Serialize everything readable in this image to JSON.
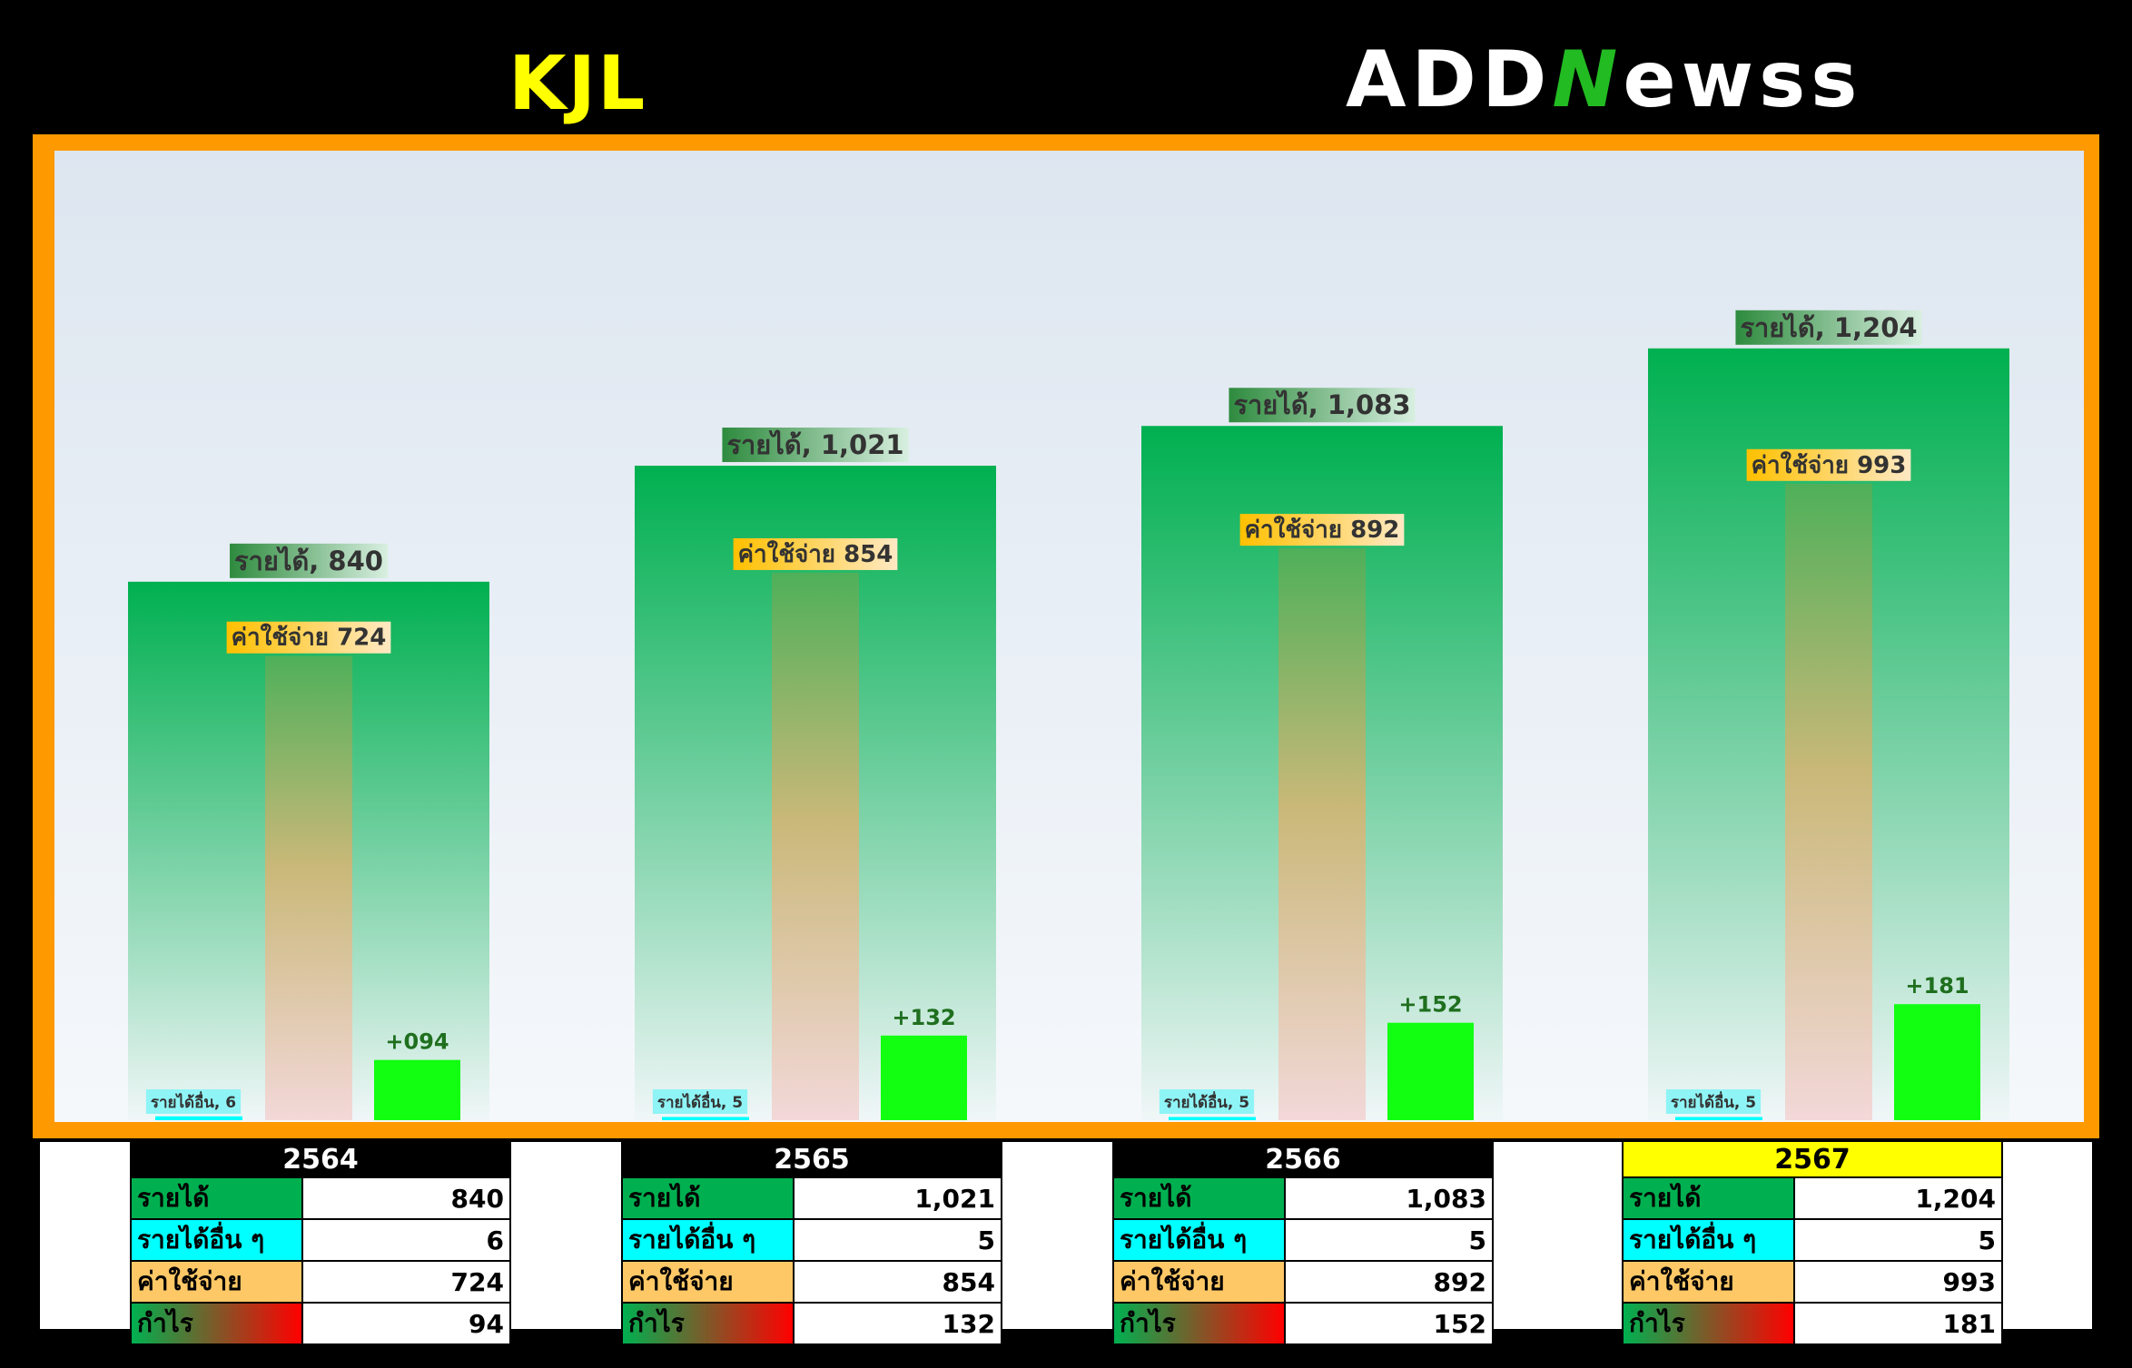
{
  "header": {
    "ticker": "KJL",
    "logo_text_a": "ADD",
    "logo_text_n": "N",
    "logo_text_b": "ewss"
  },
  "colors": {
    "revenue": "#00b050",
    "other_income": "#00ffff",
    "expense": "#ffc000",
    "profit": "#12ff12",
    "frame": "#ff9900",
    "highlight_year": "#ffff00"
  },
  "chart_data": {
    "type": "bar",
    "categories": [
      "2564",
      "2565",
      "2566",
      "2567"
    ],
    "series": [
      {
        "name": "รายได้",
        "values": [
          840,
          1021,
          1083,
          1204
        ]
      },
      {
        "name": "รายได้อื่น",
        "values": [
          6,
          5,
          5,
          5
        ]
      },
      {
        "name": "ค่าใช้จ่าย",
        "values": [
          724,
          854,
          892,
          993
        ]
      },
      {
        "name": "กำไร",
        "values": [
          94,
          132,
          152,
          181
        ]
      }
    ],
    "data_labels": {
      "revenue": [
        "รายได้, 840",
        "รายได้, 1,021",
        "รายได้, 1,083",
        "รายได้, 1,204"
      ],
      "other": [
        "รายได้อื่น, 6",
        "รายได้อื่น, 5",
        "รายได้อื่น, 5",
        "รายได้อื่น, 5"
      ],
      "expense": [
        "ค่าใช้จ่าย 724",
        "ค่าใช้จ่าย 854",
        "ค่าใช้จ่าย 892",
        "ค่าใช้จ่าย 993"
      ],
      "profit": [
        "+094",
        "+132",
        "+152",
        "+181"
      ]
    },
    "ylim": [
      0,
      1300
    ],
    "grid": false,
    "legend": "none"
  },
  "table": {
    "row_labels": {
      "revenue": "รายได้",
      "other": "รายได้อื่น ๆ",
      "expense": "ค่าใช้จ่าย",
      "profit": "กำไร"
    },
    "years": [
      {
        "year": "2564",
        "revenue": "840",
        "other": "6",
        "expense": "724",
        "profit": "94"
      },
      {
        "year": "2565",
        "revenue": "1,021",
        "other": "5",
        "expense": "854",
        "profit": "132"
      },
      {
        "year": "2566",
        "revenue": "1,083",
        "other": "5",
        "expense": "892",
        "profit": "152"
      },
      {
        "year": "2567",
        "revenue": "1,204",
        "other": "5",
        "expense": "993",
        "profit": "181"
      }
    ]
  }
}
